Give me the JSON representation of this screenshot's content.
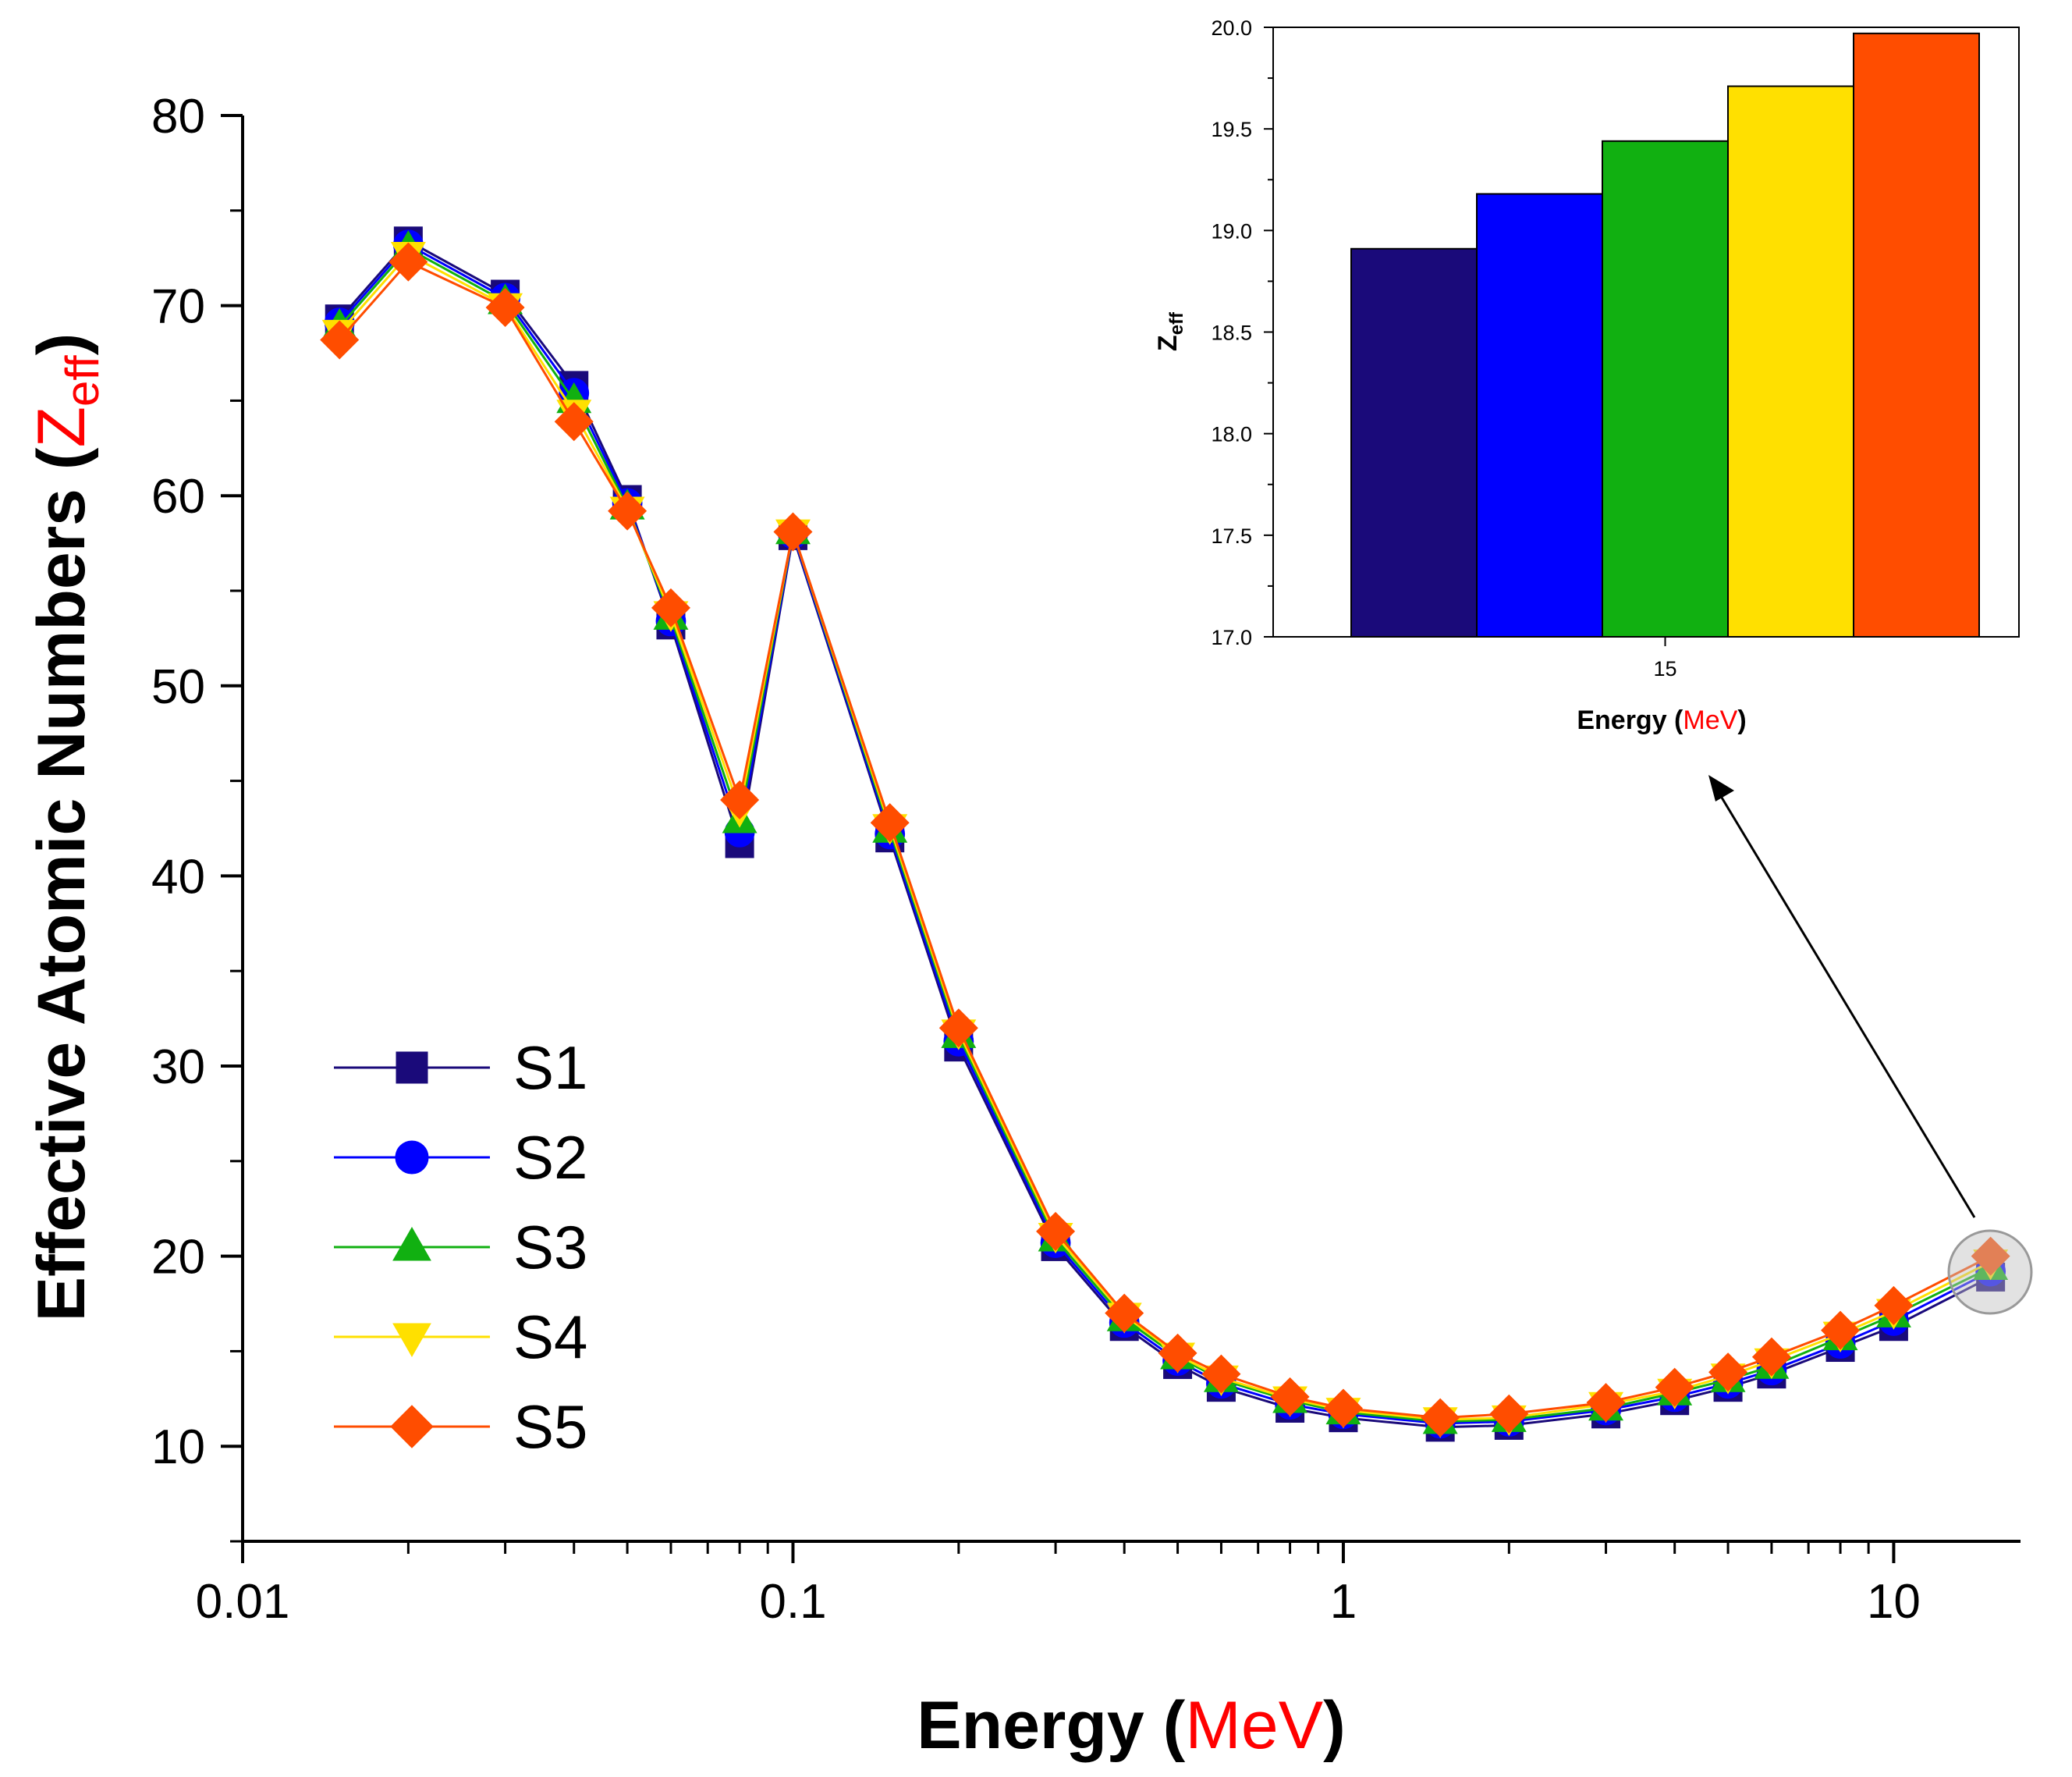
{
  "chart_data": [
    {
      "type": "line",
      "xscale": "log",
      "xlabel_prefix": "Energy (",
      "xlabel_unit": "MeV",
      "xlabel_suffix": ")",
      "ylabel_prefix": "Effective Atomic Numbers (",
      "ylabel_symbol": "Z",
      "ylabel_subscript": "eff",
      "ylabel_suffix": ")",
      "xlim": [
        0.01,
        17
      ],
      "ylim": [
        5,
        80
      ],
      "x_ticks": [
        "0.01",
        "0.1",
        "1",
        "10"
      ],
      "y_ticks": [
        "10",
        "20",
        "30",
        "40",
        "50",
        "60",
        "70",
        "80"
      ],
      "legend_position": "lower-left",
      "x": [
        0.015,
        0.02,
        0.03,
        0.04,
        0.05,
        0.06,
        0.08,
        0.1,
        0.15,
        0.2,
        0.3,
        0.4,
        0.5,
        0.6,
        0.8,
        1,
        1.5,
        2,
        3,
        4,
        5,
        6,
        8,
        10,
        15
      ],
      "series": [
        {
          "name": "S1",
          "color": "#1a0a7a",
          "marker": "square",
          "values": [
            69.3,
            73.4,
            70.6,
            65.8,
            59.8,
            53.2,
            41.7,
            57.9,
            42.0,
            31.0,
            20.5,
            16.3,
            14.3,
            13.1,
            12.0,
            11.5,
            11.0,
            11.1,
            11.7,
            12.4,
            13.1,
            13.8,
            15.2,
            16.3,
            18.9
          ]
        },
        {
          "name": "S2",
          "color": "#0000ff",
          "marker": "circle",
          "values": [
            69.1,
            73.2,
            70.4,
            65.4,
            59.6,
            53.4,
            42.3,
            58.0,
            42.2,
            31.3,
            20.7,
            16.5,
            14.5,
            13.3,
            12.2,
            11.7,
            11.2,
            11.3,
            11.9,
            12.6,
            13.3,
            14.0,
            15.4,
            16.6,
            19.2
          ]
        },
        {
          "name": "S3",
          "color": "#11b011",
          "marker": "triangle-up",
          "values": [
            68.9,
            73.0,
            70.2,
            65.0,
            59.4,
            53.6,
            42.9,
            58.1,
            42.4,
            31.6,
            20.9,
            16.7,
            14.7,
            13.5,
            12.4,
            11.8,
            11.3,
            11.4,
            12.0,
            12.8,
            13.5,
            14.2,
            15.7,
            16.9,
            19.4
          ]
        },
        {
          "name": "S4",
          "color": "#ffe000",
          "marker": "triangle-down",
          "values": [
            68.6,
            72.7,
            70.0,
            64.4,
            59.3,
            53.8,
            43.5,
            58.1,
            42.6,
            31.8,
            21.1,
            16.9,
            14.8,
            13.6,
            12.5,
            11.9,
            11.4,
            11.5,
            12.2,
            12.9,
            13.7,
            14.5,
            15.9,
            17.1,
            19.7
          ]
        },
        {
          "name": "S5",
          "color": "#ff4d00",
          "marker": "diamond",
          "values": [
            68.2,
            72.3,
            69.9,
            63.9,
            59.2,
            54.1,
            44.0,
            58.1,
            42.8,
            32.0,
            21.3,
            17.0,
            14.9,
            13.8,
            12.6,
            12.0,
            11.5,
            11.7,
            12.3,
            13.1,
            13.9,
            14.7,
            16.1,
            17.4,
            20.0
          ]
        }
      ]
    },
    {
      "type": "bar",
      "inset": true,
      "xlabel_prefix": "Energy (",
      "xlabel_unit": "MeV",
      "xlabel_suffix": ")",
      "ylabel_symbol": "Z",
      "ylabel_subscript": "eff",
      "categories": [
        "15"
      ],
      "ylim": [
        17.0,
        20.0
      ],
      "y_ticks": [
        "17.0",
        "17.5",
        "18.0",
        "18.5",
        "19.0",
        "19.5",
        "20.0"
      ],
      "series": [
        {
          "name": "S1",
          "color": "#1a0a7a",
          "values": [
            18.91
          ]
        },
        {
          "name": "S2",
          "color": "#0000ff",
          "values": [
            19.18
          ]
        },
        {
          "name": "S3",
          "color": "#11b011",
          "values": [
            19.44
          ]
        },
        {
          "name": "S4",
          "color": "#ffe000",
          "values": [
            19.71
          ]
        },
        {
          "name": "S5",
          "color": "#ff4d00",
          "values": [
            19.97
          ]
        }
      ]
    }
  ]
}
